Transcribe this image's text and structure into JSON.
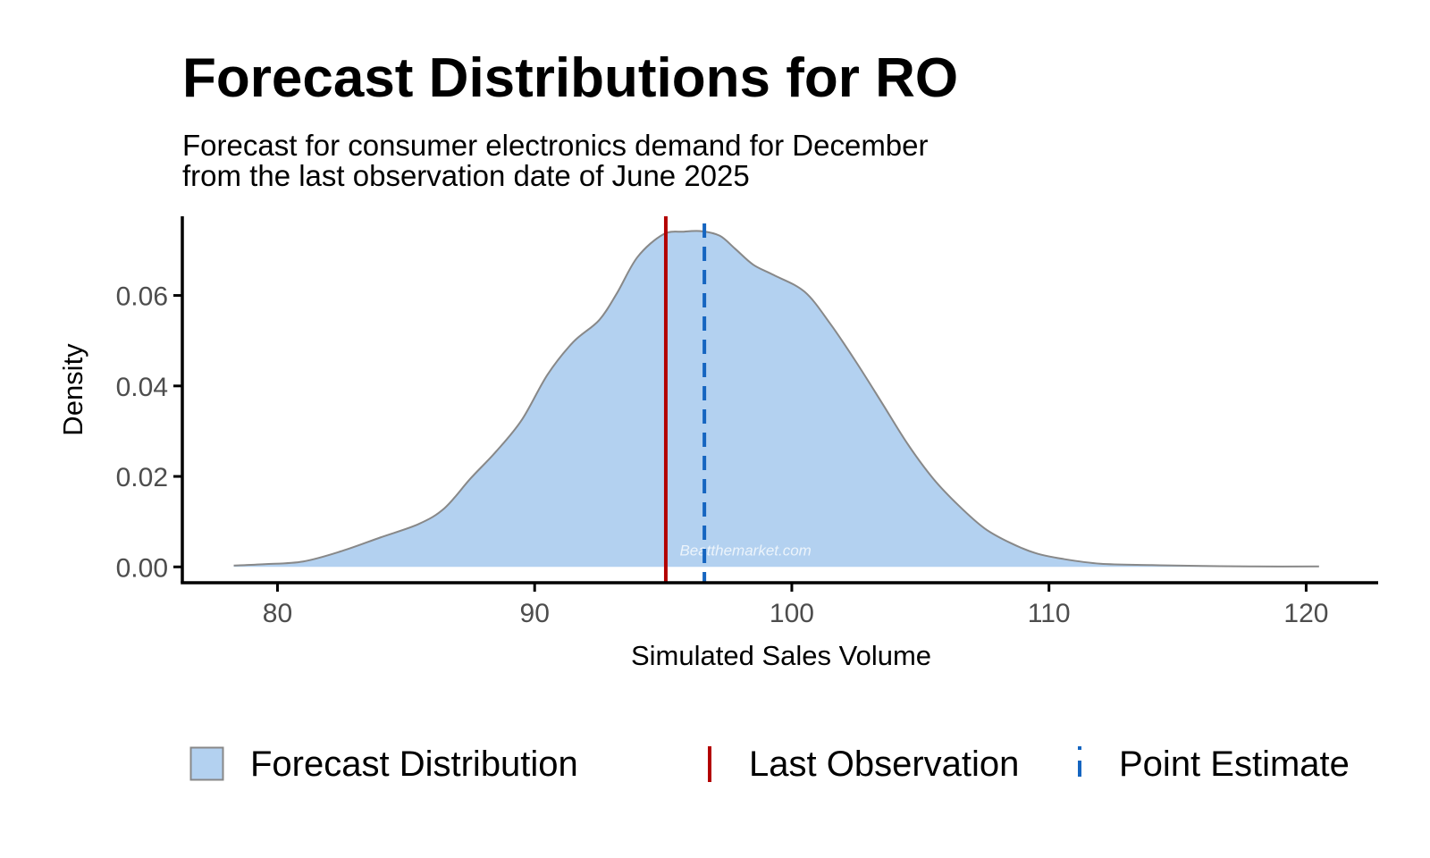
{
  "colors": {
    "fill": "#b3d1f0",
    "outline": "#888888",
    "last_observation": "#b30000",
    "point_estimate": "#1565c0",
    "axis": "#000000",
    "tick_text": "#4d4d4d"
  },
  "chart_data": {
    "type": "area",
    "title": "Forecast Distributions for RO",
    "subtitle_lines": [
      "Forecast for consumer electronics demand for December",
      "from the last observation date of June 2025"
    ],
    "xlabel": "Simulated Sales Volume",
    "ylabel": "Density",
    "xlim": [
      76.3,
      122.8
    ],
    "ylim": [
      -0.0035,
      0.0775
    ],
    "xticks": [
      80,
      90,
      100,
      110,
      120
    ],
    "xtick_labels": [
      "80",
      "90",
      "100",
      "110",
      "120"
    ],
    "yticks": [
      0,
      0.02,
      0.04,
      0.06
    ],
    "ytick_labels": [
      "0.00",
      "0.02",
      "0.04",
      "0.06"
    ],
    "grid": false,
    "legend_position": "bottom",
    "series": [
      {
        "name": "Forecast Distribution",
        "x": [
          78.3,
          79.5,
          81.0,
          82.5,
          84.0,
          85.5,
          86.5,
          87.5,
          88.5,
          89.5,
          90.5,
          91.5,
          92.5,
          93.2,
          94.0,
          95.0,
          95.8,
          96.5,
          97.2,
          97.8,
          98.5,
          99.3,
          100.5,
          101.5,
          102.5,
          103.5,
          104.5,
          105.5,
          106.5,
          107.5,
          108.5,
          109.5,
          110.5,
          112.0,
          114.0,
          116.0,
          118.0,
          120.5
        ],
        "y": [
          0.0003,
          0.0006,
          0.0012,
          0.0035,
          0.0065,
          0.0095,
          0.013,
          0.0195,
          0.0255,
          0.0325,
          0.0425,
          0.0497,
          0.0545,
          0.0605,
          0.0685,
          0.0735,
          0.0741,
          0.0742,
          0.0732,
          0.0703,
          0.0668,
          0.0645,
          0.0608,
          0.0537,
          0.0453,
          0.0363,
          0.0272,
          0.0195,
          0.0135,
          0.0085,
          0.0053,
          0.003,
          0.0018,
          0.0007,
          0.0004,
          0.0002,
          0.0001,
          0.0001
        ]
      }
    ],
    "vlines": [
      {
        "name": "Last Observation",
        "x": 95.1,
        "style": "solid"
      },
      {
        "name": "Point Estimate",
        "x": 96.6,
        "style": "dashed"
      }
    ],
    "watermark": "Beatthemarket.com"
  }
}
